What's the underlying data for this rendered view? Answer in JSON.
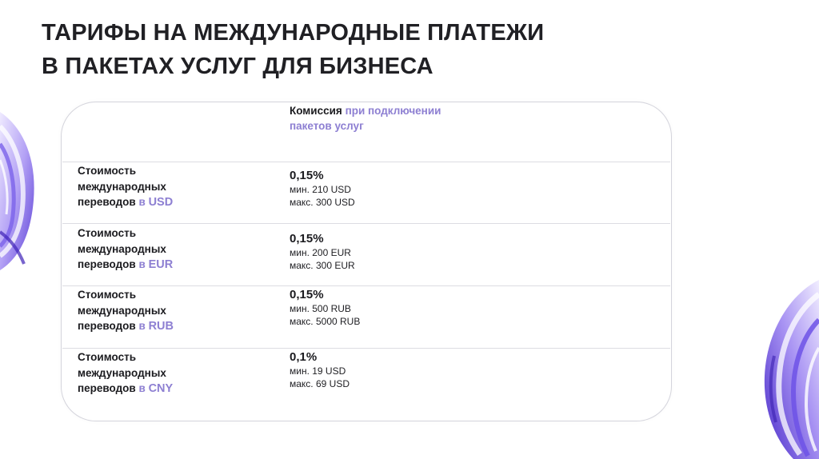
{
  "title": {
    "line1": "ТАРИФЫ НА МЕЖДУНАРОДНЫЕ ПЛАТЕЖИ",
    "line2": "В ПАКЕТАХ УСЛУГ ДЛЯ БИЗНЕСА"
  },
  "table": {
    "header": {
      "prefix": "Комиссия",
      "accent_line1": "при подключении",
      "accent_line2": "пакетов услуг"
    },
    "rows": [
      {
        "label_line1": "Стоимость",
        "label_line2": "международных",
        "label_line3": "переводов",
        "label_in": "в",
        "currency": "USD",
        "percent": "0,15%",
        "min": "мин. 210 USD",
        "max": "макс. 300 USD"
      },
      {
        "label_line1": "Стоимость",
        "label_line2": "международных",
        "label_line3": "переводов",
        "label_in": "в",
        "currency": "EUR",
        "percent": "0,15%",
        "min": "мин. 200 EUR",
        "max": "макс. 300 EUR"
      },
      {
        "label_line1": "Стоимость",
        "label_line2": "международных",
        "label_line3": "переводов",
        "label_in": "в",
        "currency": "RUB",
        "percent": "0,15%",
        "min": "мин. 500 RUB",
        "max": "макс. 5000 RUB"
      },
      {
        "label_line1": "Стоимость",
        "label_line2": "международных",
        "label_line3": "переводов",
        "label_in": "в",
        "currency": "CNY",
        "percent": "0,1%",
        "min": "мин. 19 USD",
        "max": "макс. 69 USD"
      }
    ]
  },
  "colors": {
    "accent": "#8d7fd2",
    "text": "#1b1b1f",
    "decor_purple": "#6a4fe0"
  },
  "decorations": [
    "abstract-swirl-left",
    "abstract-swirl-right"
  ]
}
